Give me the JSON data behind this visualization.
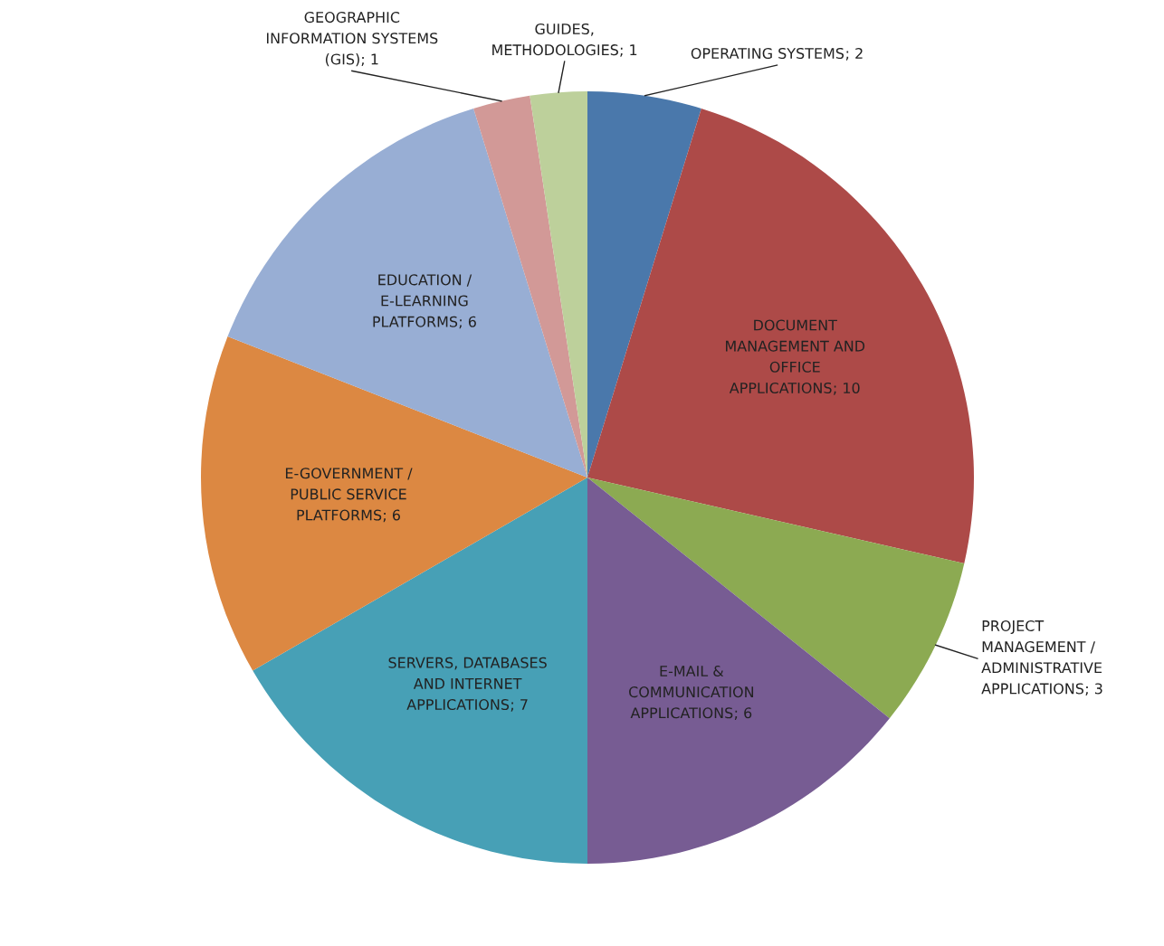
{
  "chart_data": {
    "type": "pie",
    "categories": [
      "OPERATING SYSTEMS",
      "DOCUMENT MANAGEMENT AND OFFICE APPLICATIONS",
      "PROJECT MANAGEMENT / ADMINISTRATIVE APPLICATIONS",
      "E-MAIL & COMMUNICATION APPLICATIONS",
      "SERVERS, DATABASES AND INTERNET APPLICATIONS",
      "E-GOVERNMENT / PUBLIC SERVICE PLATFORMS",
      "EDUCATION / E-LEARNING PLATFORMS",
      "GEOGRAPHIC INFORMATION SYSTEMS (GIS)",
      "GUIDES, METHODOLOGIES"
    ],
    "values": [
      2,
      10,
      3,
      6,
      7,
      6,
      6,
      1,
      1
    ],
    "colors": [
      "#4a78ab",
      "#ad4a48",
      "#8caa52",
      "#775c93",
      "#47a0b6",
      "#dc8842",
      "#98aed4",
      "#d29997",
      "#bdd09b"
    ],
    "value_labels": [
      "; 2",
      "; 10",
      "; 3",
      "; 6",
      "; 7",
      "; 6",
      "; 6",
      "; 1",
      "; 1"
    ],
    "legend": false
  }
}
